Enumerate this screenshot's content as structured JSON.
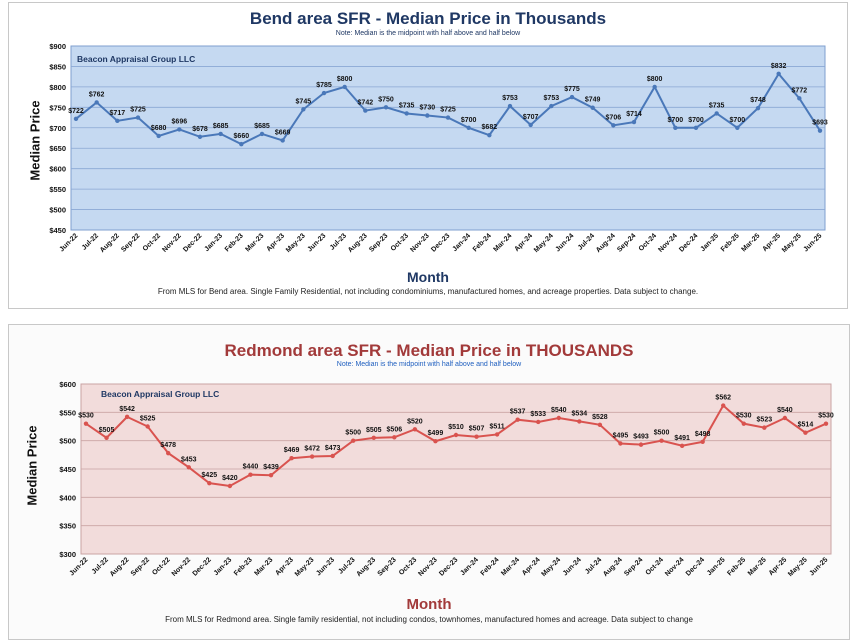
{
  "chart_data": [
    {
      "type": "line",
      "title": "Bend area SFR - Median Price in Thousands",
      "subtitle": "Note: Median is the midpoint with half above and half below",
      "brand": "Beacon Appraisal Group LLC",
      "xlabel": "Month",
      "ylabel": "Median Price",
      "footnote": "From MLS for Bend area.  Single Family Residential, not including condominiums, manufactured homes, and acreage properties.  Data subject to change.",
      "ylim": [
        450,
        900
      ],
      "yticks": [
        "$450",
        "$500",
        "$550",
        "$600",
        "$650",
        "$700",
        "$750",
        "$800",
        "$850",
        "$900"
      ],
      "grid": true,
      "colors": {
        "title": "#1f3864",
        "line": "#4a78b9",
        "plot_bg": "#c5d9f1",
        "plot_border": "#7f9fcf",
        "grid": "#8aa7d4",
        "xlabel": "#1f3864",
        "brand": "#1f3864"
      },
      "categories": [
        "Jun-22",
        "Jul-22",
        "Aug-22",
        "Sep-22",
        "Oct-22",
        "Nov-22",
        "Dec-22",
        "Jan-23",
        "Feb-23",
        "Mar-23",
        "Apr-23",
        "May-23",
        "Jun-23",
        "Jul-23",
        "Aug-23",
        "Sep-23",
        "Oct-23",
        "Nov-23",
        "Dec-23",
        "Jan-24",
        "Feb-24",
        "Mar-24",
        "Apr-24",
        "May-24",
        "Jun-24",
        "Jul-24",
        "Aug-24",
        "Sep-24",
        "Oct-24",
        "Nov-24",
        "Dec-24",
        "Jan-25",
        "Feb-25",
        "Mar-25",
        "Apr-25",
        "May-25",
        "Jun-25"
      ],
      "values": [
        722,
        762,
        717,
        725,
        680,
        696,
        678,
        685,
        660,
        685,
        669,
        745,
        785,
        800,
        742,
        750,
        735,
        730,
        725,
        700,
        682,
        753,
        707,
        753,
        775,
        749,
        706,
        714,
        800,
        700,
        700,
        735,
        700,
        748,
        832,
        772,
        693
      ],
      "data_labels": [
        "$722",
        "$762",
        "$717",
        "$725",
        "$680",
        "$696",
        "$678",
        "$685",
        "$660",
        "$685",
        "$669",
        "$745",
        "$785",
        "$800",
        "$742",
        "$750",
        "$735",
        "$730",
        "$725",
        "$700",
        "$682",
        "$753",
        "$707",
        "$753",
        "$775",
        "$749",
        "$706",
        "$714",
        "$800",
        "$700",
        "$700",
        "$735",
        "$700",
        "$748",
        "$832",
        "$772",
        "$693"
      ]
    },
    {
      "type": "line",
      "title": "Redmond area SFR - Median Price in THOUSANDS",
      "subtitle": "Note:  Median is the midpoint with half above and half below",
      "brand": "Beacon Appraisal Group LLC",
      "xlabel": "Month",
      "ylabel": "Median Price",
      "footnote": "From MLS for Redmond area. Single family residential, not including condos, townhomes, manufactured homes and acreage.  Data subject to change",
      "ylim": [
        300,
        600
      ],
      "yticks": [
        "$300",
        "$350",
        "$400",
        "$450",
        "$500",
        "$550",
        "$600"
      ],
      "grid": true,
      "colors": {
        "title": "#a23a3a",
        "line": "#d9534f",
        "plot_bg": "#f2dcdb",
        "plot_border": "#c9a3a3",
        "grid": "#c9a3a3",
        "xlabel": "#a23a3a",
        "subtitle": "#1f5fbf",
        "brand": "#1f3864"
      },
      "categories": [
        "Jun-22",
        "Jul-22",
        "Aug-22",
        "Sep-22",
        "Oct-22",
        "Nov-22",
        "Dec-22",
        "Jan-23",
        "Feb-23",
        "Mar-23",
        "Apr-23",
        "May-23",
        "Jun-23",
        "Jul-23",
        "Aug-23",
        "Sep-23",
        "Oct-23",
        "Nov-23",
        "Dec-23",
        "Jan-24",
        "Feb-24",
        "Mar-24",
        "Apr-24",
        "May-24",
        "Jun-24",
        "Jul-24",
        "Aug-24",
        "Sep-24",
        "Oct-24",
        "Nov-24",
        "Dec-24",
        "Jan-25",
        "Feb-25",
        "Mar-25",
        "Apr-25",
        "May-25",
        "Jun-25"
      ],
      "values": [
        530,
        505,
        542,
        525,
        478,
        453,
        425,
        420,
        440,
        439,
        469,
        472,
        473,
        500,
        505,
        506,
        520,
        499,
        510,
        507,
        511,
        537,
        533,
        540,
        534,
        528,
        495,
        493,
        500,
        491,
        498,
        562,
        530,
        523,
        540,
        514,
        530
      ],
      "data_labels": [
        "$530",
        "$505",
        "$542",
        "$525",
        "$478",
        "$453",
        "$425",
        "$420",
        "$440",
        "$439",
        "$469",
        "$472",
        "$473",
        "$500",
        "$505",
        "$506",
        "$520",
        "$499",
        "$510",
        "$507",
        "$511",
        "$537",
        "$533",
        "$540",
        "$534",
        "$528",
        "$495",
        "$493",
        "$500",
        "$491",
        "$498",
        "$562",
        "$530",
        "$523",
        "$540",
        "$514",
        "$530"
      ]
    }
  ]
}
